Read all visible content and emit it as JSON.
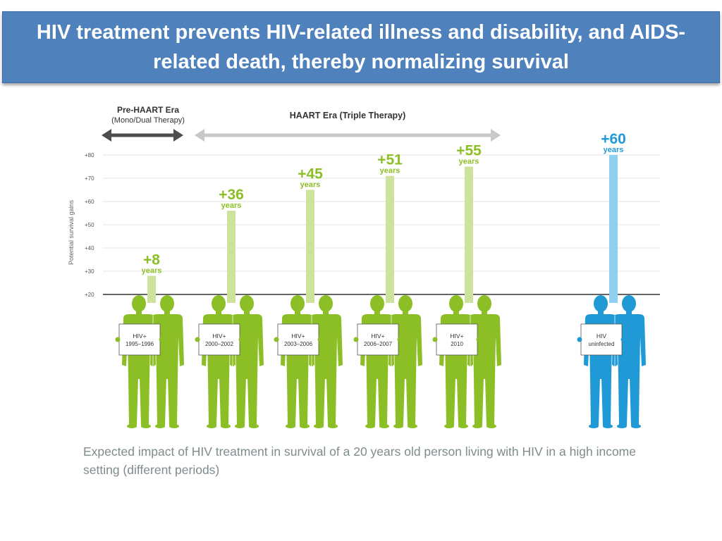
{
  "slide": {
    "title": "HIV treatment prevents HIV-related illness and disability, and AIDS-related death, thereby normalizing survival",
    "caption": "Expected impact of HIV treatment in survival of a 20 years old person living with HIV in a high income setting (different periods)"
  },
  "eras": {
    "pre_haart_line1": "Pre-HAART Era",
    "pre_haart_line2": "(Mono/Dual Therapy)",
    "haart": "HAART Era (Triple Therapy)"
  },
  "colors": {
    "hiv": "#8cbf26",
    "hiv_bar": "#cde29b",
    "uninfected": "#1f9ad6",
    "uninfected_bar": "#8fd0f0",
    "arrow_dark": "#4d4d4d",
    "arrow_light": "#c8c8c8"
  },
  "chart_data": {
    "type": "bar",
    "ylabel": "Potential survival gains",
    "y_ticks": [
      "+20",
      "+30",
      "+40",
      "+50",
      "+60",
      "+70",
      "+80"
    ],
    "y_tick_values": [
      20,
      30,
      40,
      50,
      60,
      70,
      80
    ],
    "ylim": [
      20,
      80
    ],
    "grid": true,
    "unit_label": "years",
    "categories": [
      {
        "line1": "HIV+",
        "line2": "1995–1996",
        "value": 8,
        "label": "+8",
        "group": "hiv"
      },
      {
        "line1": "HIV+",
        "line2": "2000–2002",
        "value": 36,
        "label": "+36",
        "group": "hiv"
      },
      {
        "line1": "HIV+",
        "line2": "2003–2006",
        "value": 45,
        "label": "+45",
        "group": "hiv"
      },
      {
        "line1": "HIV+",
        "line2": "2006–2007",
        "value": 51,
        "label": "+51",
        "group": "hiv"
      },
      {
        "line1": "HIV+",
        "line2": "2010",
        "value": 55,
        "label": "+55",
        "group": "hiv"
      },
      {
        "line1": "HIV",
        "line2": "uninfected",
        "value": 60,
        "label": "+60",
        "group": "uninfected"
      }
    ]
  }
}
